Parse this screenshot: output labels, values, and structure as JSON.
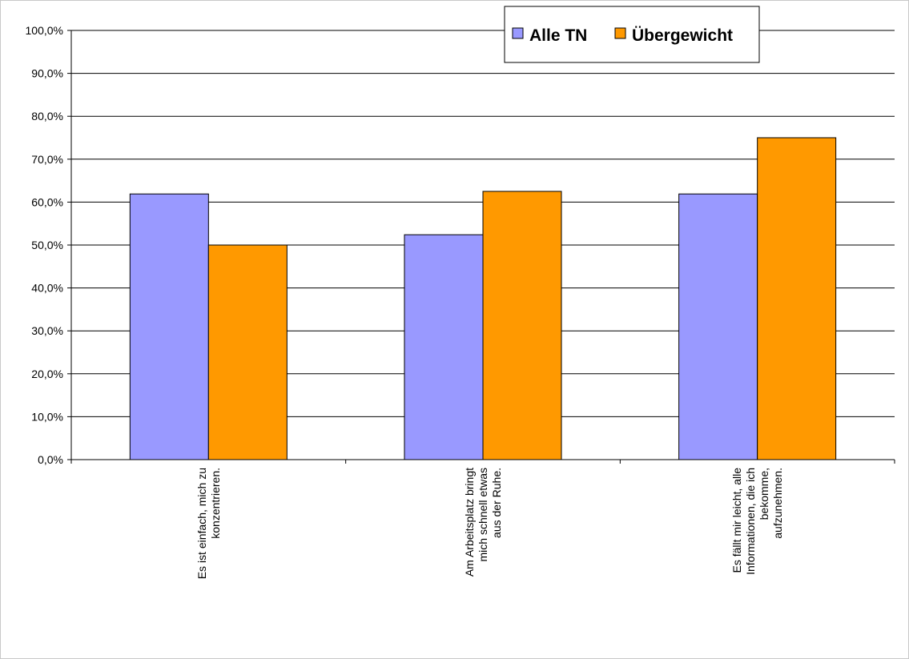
{
  "chart_data": {
    "type": "bar",
    "title": "",
    "xlabel": "",
    "ylabel": "",
    "ylim": [
      0,
      100
    ],
    "y_ticks": [
      "0,0%",
      "10,0%",
      "20,0%",
      "30,0%",
      "40,0%",
      "50,0%",
      "60,0%",
      "70,0%",
      "80,0%",
      "90,0%",
      "100,0%"
    ],
    "categories": [
      [
        "Es ist einfach, mich zu",
        "konzentrieren."
      ],
      [
        "Am Arbeitsplatz bringt",
        "mich schnell etwas",
        "aus der Ruhe."
      ],
      [
        "Es fällt mir leicht, alle",
        "Informationen, die ich",
        "bekomme,",
        "aufzunehmen."
      ]
    ],
    "series": [
      {
        "name": "Alle TN",
        "color": "#9999ff",
        "values": [
          61.9,
          52.4,
          61.9
        ]
      },
      {
        "name": "Übergewicht",
        "color": "#ff9900",
        "values": [
          50.0,
          62.5,
          75.0
        ]
      }
    ],
    "grid": true,
    "legend_position": "top-right"
  }
}
